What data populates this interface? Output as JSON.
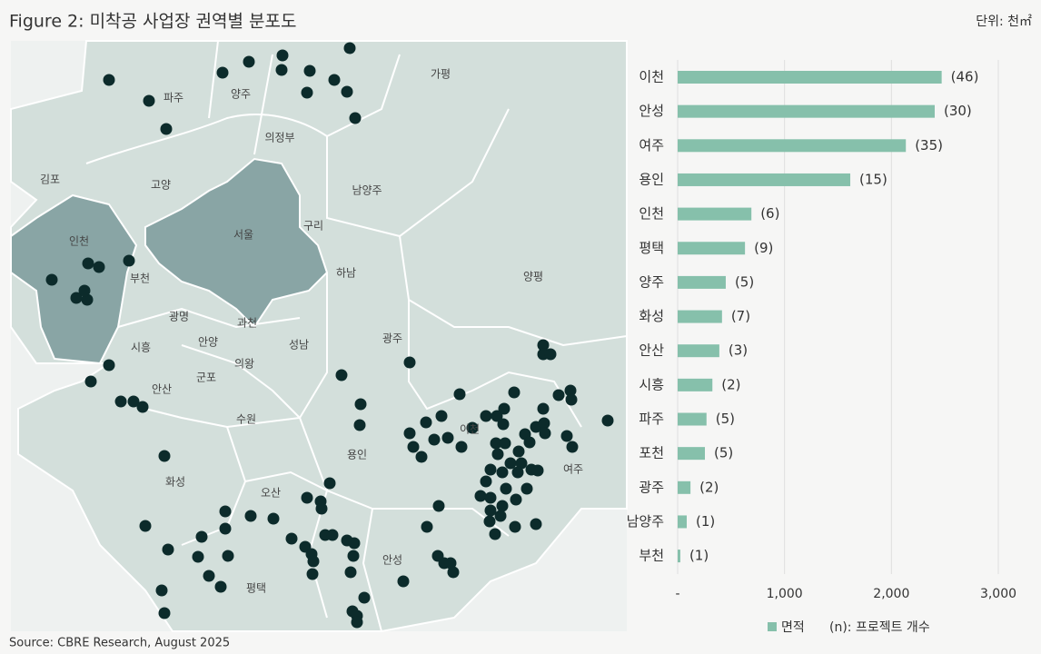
{
  "title": "Figure 2: 미착공 사업장 권역별 분포도",
  "unit": "단위: 천㎡",
  "source": "Source: CBRE Research, August 2025",
  "map": {
    "regions": [
      "파주",
      "양주",
      "가평",
      "의정부",
      "김포",
      "고양",
      "남양주",
      "서울",
      "구리",
      "인천",
      "부천",
      "하남",
      "양평",
      "광명",
      "과천",
      "시흥",
      "안양",
      "성남",
      "광주",
      "의왕",
      "군포",
      "안산",
      "수원",
      "이천",
      "용인",
      "화성",
      "여주",
      "오산",
      "안성",
      "평택"
    ]
  },
  "chart_data": {
    "type": "hbar",
    "categories": [
      "이천",
      "안성",
      "여주",
      "용인",
      "인천",
      "평택",
      "양주",
      "화성",
      "안산",
      "시흥",
      "파주",
      "포천",
      "광주",
      "남양주",
      "부천"
    ],
    "values": [
      2470,
      2405,
      2135,
      1615,
      690,
      630,
      450,
      415,
      390,
      325,
      270,
      255,
      120,
      85,
      25
    ],
    "count_labels": [
      "(46)",
      "(30)",
      "(35)",
      "(15)",
      "(6)",
      "(9)",
      "(5)",
      "(7)",
      "(3)",
      "(2)",
      "(5)",
      "(5)",
      "(2)",
      "(1)",
      "(1)"
    ],
    "series_name": "면적",
    "note": "(n): 프로젝트 개수",
    "color": "#86c0ab",
    "xlim": [
      0,
      3000
    ],
    "xticks": [
      {
        "value": 0,
        "label": "-"
      },
      {
        "value": 1000,
        "label": "1,000"
      },
      {
        "value": 2000,
        "label": "2,000"
      },
      {
        "value": 3000,
        "label": "3,000"
      }
    ],
    "grid": true
  }
}
